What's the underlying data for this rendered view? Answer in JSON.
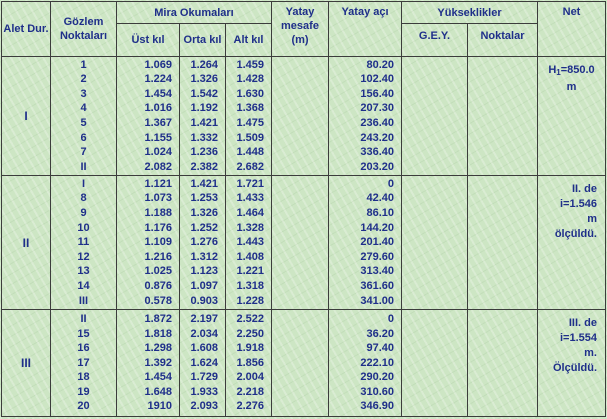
{
  "headers": {
    "station": "Alet Dur.",
    "points": "Gözlem Noktaları",
    "rod_readings": "Mira Okumaları",
    "upper": "Üst kıl",
    "middle": "Orta kıl",
    "lower": "Alt kıl",
    "hdist": "Yatay mesafe (m)",
    "hangle": "Yatay açı",
    "elevations": "Yükseklikler",
    "gey": "G.E.Y.",
    "point_elev": "Noktalar",
    "net": "Net"
  },
  "groups": [
    {
      "station": "I",
      "points": [
        "1",
        "2",
        "3",
        "4",
        "5",
        "6",
        "7",
        "II"
      ],
      "upper": [
        "1.069",
        "1.224",
        "1.454",
        "1.016",
        "1.367",
        "1.155",
        "1.024",
        "2.082"
      ],
      "middle": [
        "1.264",
        "1.326",
        "1.542",
        "1.192",
        "1.421",
        "1.332",
        "1.236",
        "2.382"
      ],
      "lower": [
        "1.459",
        "1.428",
        "1.630",
        "1.368",
        "1.475",
        "1.509",
        "1.448",
        "2.682"
      ],
      "angles": [
        "80.20",
        "102.40",
        "156.40",
        "207.30",
        "236.40",
        "243.20",
        "336.40",
        "203.20"
      ],
      "net_lines": [
        "H",
        "1",
        "=850.0",
        "m"
      ]
    },
    {
      "station": "II",
      "points": [
        "I",
        "8",
        "9",
        "10",
        "11",
        "12",
        "13",
        "14",
        "III"
      ],
      "upper": [
        "1.121",
        "1.073",
        "1.188",
        "1.176",
        "1.109",
        "1.216",
        "1.025",
        "0.876",
        "0.578"
      ],
      "middle": [
        "1.421",
        "1.253",
        "1.326",
        "1.252",
        "1.276",
        "1.312",
        "1.123",
        "1.097",
        "0.903"
      ],
      "lower": [
        "1.721",
        "1.433",
        "1.464",
        "1.328",
        "1.443",
        "1.408",
        "1.221",
        "1.318",
        "1.228"
      ],
      "angles": [
        "0",
        "42.40",
        "86.10",
        "144.20",
        "201.40",
        "279.60",
        "313.40",
        "361.60",
        "341.00"
      ],
      "net_lines": [
        "II. de",
        "i=1.546",
        "m",
        "ölçüldü."
      ]
    },
    {
      "station": "III",
      "points": [
        "II",
        "15",
        "16",
        "17",
        "18",
        "19",
        "20"
      ],
      "upper": [
        "1.872",
        "1.818",
        "1.298",
        "1.392",
        "1.454",
        "1.648",
        "1910"
      ],
      "middle": [
        "2.197",
        "2.034",
        "1.608",
        "1.624",
        "1.729",
        "1.933",
        "2.093"
      ],
      "lower": [
        "2.522",
        "2.250",
        "1.918",
        "1.856",
        "2.004",
        "2.218",
        "2.276"
      ],
      "angles": [
        "0",
        "36.20",
        "97.40",
        "222.10",
        "290.20",
        "310.60",
        "346.90"
      ],
      "net_lines": [
        "III. de",
        "i=1.554",
        "m.",
        "Ölçüldü."
      ]
    }
  ]
}
